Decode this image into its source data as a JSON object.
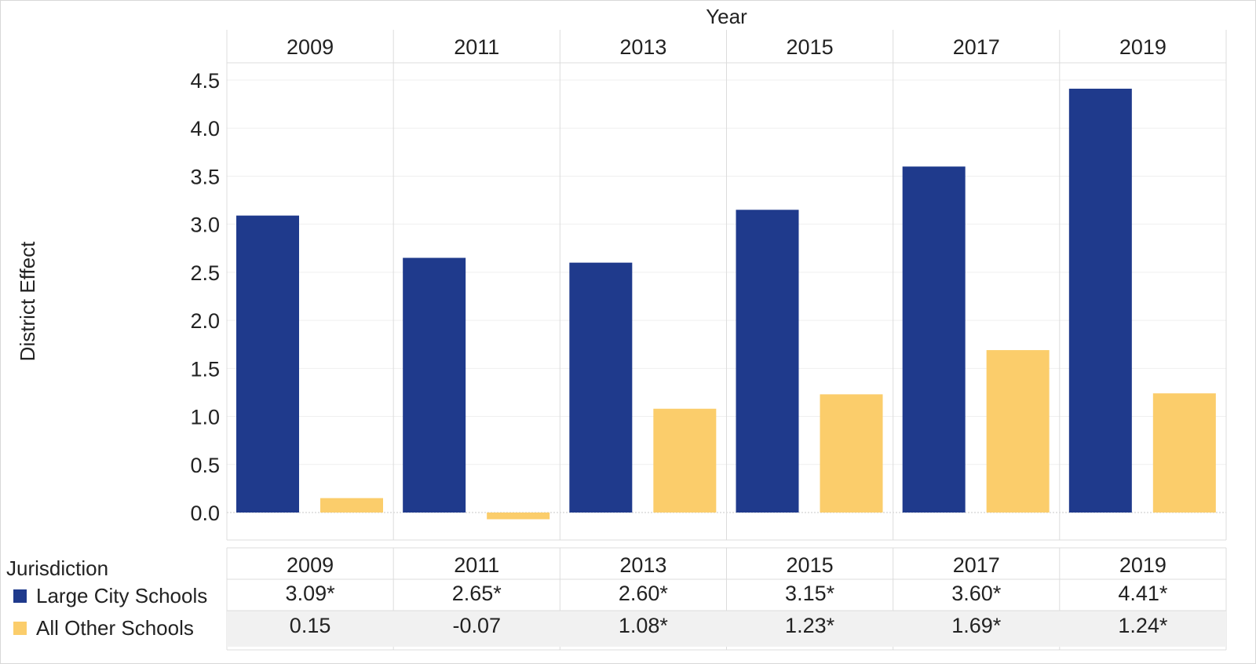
{
  "chart_data": {
    "type": "bar",
    "column_header": "Year",
    "categories": [
      "2009",
      "2011",
      "2013",
      "2015",
      "2017",
      "2019"
    ],
    "ylabel": "District Effect",
    "ylim": [
      -0.3,
      4.7
    ],
    "yticks": [
      "0.0",
      "0.5",
      "1.0",
      "1.5",
      "2.0",
      "2.5",
      "3.0",
      "3.5",
      "4.0",
      "4.5"
    ],
    "grid": true,
    "series": [
      {
        "name": "Large City Schools",
        "color": "#1f3a8c",
        "values": [
          3.09,
          2.65,
          2.6,
          3.15,
          3.6,
          4.41
        ],
        "labels": [
          "3.09*",
          "2.65*",
          "2.60*",
          "3.15*",
          "3.60*",
          "4.41*"
        ]
      },
      {
        "name": "All Other Schools",
        "color": "#fbcd6b",
        "values": [
          0.15,
          -0.07,
          1.08,
          1.23,
          1.69,
          1.24
        ],
        "labels": [
          "0.15",
          "-0.07",
          "1.08*",
          "1.23*",
          "1.69*",
          "1.24*"
        ]
      }
    ],
    "table": {
      "row_header": "Jurisdiction"
    }
  }
}
